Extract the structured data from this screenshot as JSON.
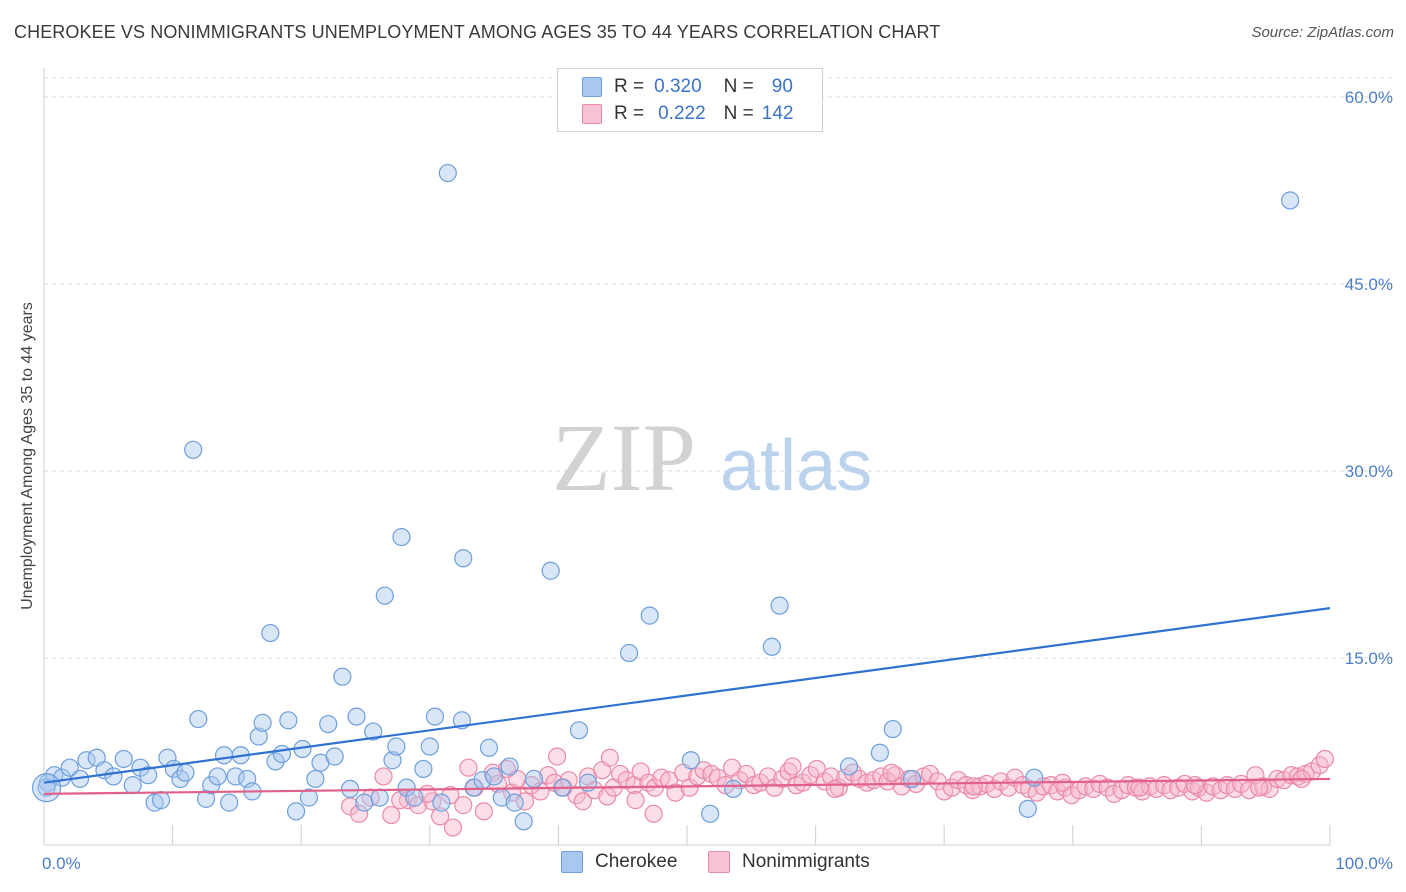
{
  "header": {
    "title": "CHEROKEE VS NONIMMIGRANTS UNEMPLOYMENT AMONG AGES 35 TO 44 YEARS CORRELATION CHART",
    "source": "Source: ZipAtlas.com"
  },
  "watermark": {
    "zip": "ZIP",
    "atlas": "atlas"
  },
  "legend": {
    "rows": [
      {
        "r_label": "R =",
        "r_value": "0.320",
        "n_label": "N =",
        "n_value": "90"
      },
      {
        "r_label": "R =",
        "r_value": "0.222",
        "n_label": "N =",
        "n_value": "142"
      }
    ]
  },
  "colors": {
    "cherokee_fill": "#a9c8f0",
    "cherokee_stroke": "#6e9fdc",
    "cherokee_line": "#2f72d0",
    "nonimm_fill": "#f7b6cb",
    "nonimm_stroke": "#ea8aa8",
    "nonimm_line": "#e0608a",
    "grid": "#d8d8d8",
    "axis_text": "#4a7fc8"
  },
  "chart_data": {
    "type": "scatter",
    "title": "CHEROKEE VS NONIMMIGRANTS UNEMPLOYMENT AMONG AGES 35 TO 44 YEARS CORRELATION CHART",
    "xlabel": "",
    "ylabel": "Unemployment Among Ages 35 to 44 years",
    "xlim": [
      0,
      100
    ],
    "ylim": [
      0,
      63
    ],
    "x_tick_labels": [
      "0.0%",
      "100.0%"
    ],
    "y_ticks": [
      15,
      30,
      45,
      60
    ],
    "y_tick_labels": [
      "15.0%",
      "30.0%",
      "45.0%",
      "60.0%"
    ],
    "grid": true,
    "legend_position": "bottom",
    "series": [
      {
        "name": "Cherokee",
        "r": 0.32,
        "n": 90,
        "trend": {
          "x": [
            0,
            100
          ],
          "y": [
            5.0,
            19.0
          ]
        },
        "points": [
          [
            0.3,
            5.0
          ],
          [
            0.8,
            5.6
          ],
          [
            1.4,
            5.4
          ],
          [
            2.0,
            6.2
          ],
          [
            2.8,
            5.3
          ],
          [
            3.3,
            6.8
          ],
          [
            4.1,
            7.0
          ],
          [
            4.7,
            6.0
          ],
          [
            5.4,
            5.5
          ],
          [
            6.2,
            6.9
          ],
          [
            6.9,
            4.8
          ],
          [
            7.5,
            6.2
          ],
          [
            8.1,
            5.6
          ],
          [
            8.6,
            3.4
          ],
          [
            9.1,
            3.6
          ],
          [
            9.6,
            7.0
          ],
          [
            10.1,
            6.1
          ],
          [
            10.6,
            5.3
          ],
          [
            11.0,
            5.8
          ],
          [
            11.6,
            31.7
          ],
          [
            12.0,
            10.1
          ],
          [
            12.6,
            3.7
          ],
          [
            13.0,
            4.8
          ],
          [
            13.5,
            5.5
          ],
          [
            14.0,
            7.2
          ],
          [
            14.4,
            3.4
          ],
          [
            14.9,
            5.5
          ],
          [
            15.3,
            7.2
          ],
          [
            15.8,
            5.3
          ],
          [
            16.2,
            4.3
          ],
          [
            16.7,
            8.7
          ],
          [
            17.0,
            9.8
          ],
          [
            17.6,
            17.0
          ],
          [
            18.0,
            6.7
          ],
          [
            18.5,
            7.3
          ],
          [
            19.0,
            10.0
          ],
          [
            19.6,
            2.7
          ],
          [
            20.1,
            7.7
          ],
          [
            20.6,
            3.8
          ],
          [
            21.1,
            5.3
          ],
          [
            21.5,
            6.6
          ],
          [
            22.1,
            9.7
          ],
          [
            22.6,
            7.1
          ],
          [
            23.2,
            13.5
          ],
          [
            23.8,
            4.5
          ],
          [
            24.3,
            10.3
          ],
          [
            24.9,
            3.4
          ],
          [
            25.6,
            9.1
          ],
          [
            26.1,
            3.8
          ],
          [
            26.5,
            20.0
          ],
          [
            27.1,
            6.8
          ],
          [
            27.4,
            7.9
          ],
          [
            27.8,
            24.7
          ],
          [
            28.2,
            4.6
          ],
          [
            28.8,
            3.8
          ],
          [
            29.5,
            6.1
          ],
          [
            30.0,
            7.9
          ],
          [
            30.4,
            10.3
          ],
          [
            30.9,
            3.4
          ],
          [
            31.4,
            53.9
          ],
          [
            32.6,
            23.0
          ],
          [
            32.5,
            10.0
          ],
          [
            33.4,
            4.6
          ],
          [
            34.1,
            5.2
          ],
          [
            34.6,
            7.8
          ],
          [
            35.0,
            5.5
          ],
          [
            35.6,
            3.8
          ],
          [
            36.2,
            6.3
          ],
          [
            36.6,
            3.4
          ],
          [
            37.3,
            1.9
          ],
          [
            38.1,
            5.3
          ],
          [
            39.4,
            22.0
          ],
          [
            40.3,
            4.6
          ],
          [
            41.6,
            9.2
          ],
          [
            42.3,
            5.0
          ],
          [
            45.5,
            15.4
          ],
          [
            47.1,
            18.4
          ],
          [
            50.3,
            6.8
          ],
          [
            51.8,
            2.5
          ],
          [
            53.6,
            4.5
          ],
          [
            56.6,
            15.9
          ],
          [
            57.2,
            19.2
          ],
          [
            62.6,
            6.3
          ],
          [
            65.0,
            7.4
          ],
          [
            66.0,
            9.3
          ],
          [
            67.5,
            5.3
          ],
          [
            76.5,
            2.9
          ],
          [
            77.0,
            5.4
          ],
          [
            96.9,
            51.7
          ],
          [
            0.2,
            4.6
          ]
        ]
      },
      {
        "name": "Nonimmigrants",
        "r": 0.222,
        "n": 142,
        "trend": {
          "x": [
            0,
            100
          ],
          "y": [
            4.1,
            5.3
          ]
        },
        "points": [
          [
            23.8,
            3.1
          ],
          [
            24.5,
            2.5
          ],
          [
            25.4,
            3.8
          ],
          [
            26.4,
            5.5
          ],
          [
            27.0,
            2.4
          ],
          [
            28.3,
            3.6
          ],
          [
            29.1,
            3.2
          ],
          [
            30.2,
            3.5
          ],
          [
            30.8,
            2.3
          ],
          [
            31.6,
            4.0
          ],
          [
            31.8,
            1.4
          ],
          [
            32.6,
            3.2
          ],
          [
            33.5,
            4.6
          ],
          [
            34.2,
            2.7
          ],
          [
            34.9,
            5.8
          ],
          [
            35.3,
            4.9
          ],
          [
            36.0,
            6.1
          ],
          [
            36.4,
            4.2
          ],
          [
            37.4,
            3.5
          ],
          [
            37.9,
            4.8
          ],
          [
            38.6,
            4.3
          ],
          [
            39.2,
            5.6
          ],
          [
            39.7,
            5.0
          ],
          [
            40.4,
            4.6
          ],
          [
            40.8,
            5.2
          ],
          [
            41.4,
            4.0
          ],
          [
            41.9,
            3.5
          ],
          [
            42.3,
            5.5
          ],
          [
            42.8,
            4.4
          ],
          [
            43.4,
            6.0
          ],
          [
            43.8,
            3.9
          ],
          [
            44.3,
            4.6
          ],
          [
            44.8,
            5.7
          ],
          [
            45.3,
            5.2
          ],
          [
            45.9,
            4.8
          ],
          [
            46.4,
            5.9
          ],
          [
            47.0,
            5.0
          ],
          [
            47.5,
            4.6
          ],
          [
            48.0,
            5.4
          ],
          [
            48.6,
            5.2
          ],
          [
            49.1,
            4.2
          ],
          [
            49.7,
            5.8
          ],
          [
            50.2,
            4.6
          ],
          [
            50.8,
            5.5
          ],
          [
            51.3,
            6.0
          ],
          [
            51.9,
            5.7
          ],
          [
            52.4,
            5.4
          ],
          [
            53.0,
            4.8
          ],
          [
            53.5,
            6.2
          ],
          [
            54.1,
            5.2
          ],
          [
            54.6,
            5.7
          ],
          [
            55.2,
            4.8
          ],
          [
            55.7,
            5.0
          ],
          [
            56.3,
            5.5
          ],
          [
            56.8,
            4.6
          ],
          [
            57.4,
            5.3
          ],
          [
            57.9,
            5.9
          ],
          [
            58.5,
            4.8
          ],
          [
            59.0,
            5.0
          ],
          [
            59.6,
            5.6
          ],
          [
            60.1,
            6.1
          ],
          [
            60.7,
            5.1
          ],
          [
            61.2,
            5.5
          ],
          [
            61.8,
            4.6
          ],
          [
            62.3,
            5.4
          ],
          [
            62.9,
            5.8
          ],
          [
            63.4,
            5.3
          ],
          [
            64.0,
            5.0
          ],
          [
            64.5,
            5.2
          ],
          [
            65.1,
            5.5
          ],
          [
            65.6,
            5.1
          ],
          [
            66.2,
            5.6
          ],
          [
            66.7,
            4.7
          ],
          [
            67.3,
            5.3
          ],
          [
            67.8,
            4.9
          ],
          [
            68.4,
            5.5
          ],
          [
            68.9,
            5.7
          ],
          [
            69.5,
            5.1
          ],
          [
            70.0,
            4.3
          ],
          [
            70.6,
            4.6
          ],
          [
            71.1,
            5.2
          ],
          [
            71.7,
            4.8
          ],
          [
            72.2,
            4.4
          ],
          [
            72.8,
            4.7
          ],
          [
            73.3,
            4.9
          ],
          [
            73.9,
            4.5
          ],
          [
            74.4,
            5.1
          ],
          [
            75.0,
            4.6
          ],
          [
            75.5,
            5.4
          ],
          [
            76.1,
            4.8
          ],
          [
            76.6,
            4.5
          ],
          [
            77.2,
            4.2
          ],
          [
            77.7,
            4.7
          ],
          [
            78.3,
            4.8
          ],
          [
            78.8,
            4.3
          ],
          [
            79.4,
            4.6
          ],
          [
            79.9,
            4.0
          ],
          [
            80.5,
            4.4
          ],
          [
            81.0,
            4.7
          ],
          [
            81.6,
            4.5
          ],
          [
            82.1,
            4.9
          ],
          [
            82.7,
            4.6
          ],
          [
            83.2,
            4.1
          ],
          [
            83.8,
            4.4
          ],
          [
            84.3,
            4.8
          ],
          [
            84.9,
            4.6
          ],
          [
            85.4,
            4.3
          ],
          [
            86.0,
            4.7
          ],
          [
            86.5,
            4.5
          ],
          [
            87.1,
            4.8
          ],
          [
            87.6,
            4.4
          ],
          [
            88.2,
            4.6
          ],
          [
            88.7,
            4.9
          ],
          [
            89.3,
            4.3
          ],
          [
            89.8,
            4.6
          ],
          [
            90.4,
            4.2
          ],
          [
            90.9,
            4.7
          ],
          [
            91.5,
            4.4
          ],
          [
            92.0,
            4.8
          ],
          [
            92.6,
            4.5
          ],
          [
            93.1,
            4.9
          ],
          [
            93.7,
            4.4
          ],
          [
            94.2,
            5.6
          ],
          [
            94.8,
            4.7
          ],
          [
            95.3,
            4.5
          ],
          [
            95.9,
            5.3
          ],
          [
            96.4,
            5.2
          ],
          [
            97.0,
            5.6
          ],
          [
            97.5,
            5.5
          ],
          [
            98.1,
            5.7
          ],
          [
            98.6,
            5.9
          ],
          [
            99.2,
            6.4
          ],
          [
            99.6,
            6.9
          ],
          [
            27.7,
            3.6
          ],
          [
            29.8,
            4.1
          ],
          [
            33.0,
            6.2
          ],
          [
            36.8,
            5.3
          ],
          [
            39.9,
            7.1
          ],
          [
            44.0,
            7.0
          ],
          [
            46.0,
            3.6
          ],
          [
            47.4,
            2.5
          ],
          [
            58.2,
            6.3
          ],
          [
            61.5,
            4.5
          ],
          [
            65.9,
            5.8
          ],
          [
            72.3,
            4.7
          ],
          [
            85.2,
            4.6
          ],
          [
            94.5,
            4.6
          ],
          [
            97.8,
            5.3
          ],
          [
            89.5,
            4.8
          ],
          [
            79.2,
            5.0
          ]
        ]
      }
    ]
  },
  "bottom_legend": {
    "items": [
      "Cherokee",
      "Nonimmigrants"
    ]
  }
}
